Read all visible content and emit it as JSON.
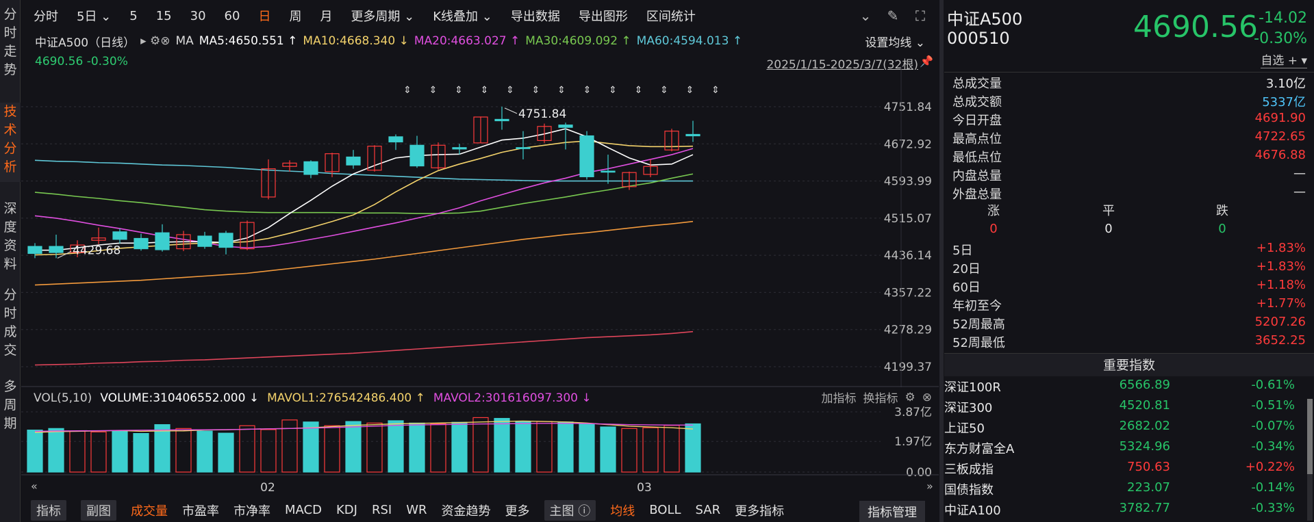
{
  "leftbar": [
    {
      "label": "分时走势",
      "active": false
    },
    {
      "label": "技术分析",
      "active": true
    },
    {
      "label": "深度资料",
      "active": false
    },
    {
      "label": "分时成交",
      "active": false
    },
    {
      "label": "多周期",
      "active": false
    }
  ],
  "topbar": {
    "items": [
      "分时",
      "5日 ⌄",
      "5",
      "15",
      "30",
      "60",
      "日",
      "周",
      "月",
      "更多周期 ⌄",
      "K线叠加 ⌄",
      "导出数据",
      "导出图形",
      "区间统计"
    ],
    "active_index": 6
  },
  "chart_header": {
    "name": "中证A500（日线）",
    "ma_label": "MA",
    "ma5": "MA5:4650.551 ↑",
    "ma10": "MA10:4668.340 ↓",
    "ma20": "MA20:4663.027 ↑",
    "ma30": "MA30:4609.092 ↑",
    "ma60": "MA60:4594.013 ↑",
    "set_ma": "设置均线 ⌄",
    "price_change": "4690.56 -0.30%",
    "range": "2025/1/15-2025/3/7(32根)",
    "annot_high": "4751.84",
    "annot_low": "4429.68"
  },
  "colors": {
    "ma5": "#ffffff",
    "ma10": "#f3d26b",
    "ma20": "#e04fe0",
    "ma30": "#78c850",
    "ma60": "#5fc8d8",
    "up": "#ff3b3b",
    "down": "#3ccfcf",
    "green": "#27c468"
  },
  "chart_data": {
    "type": "candlestick",
    "price_axis_ticks": [
      "4751.84",
      "4672.92",
      "4593.99",
      "4515.07",
      "4436.14",
      "4357.22",
      "4278.29",
      "4199.37"
    ],
    "ylim": [
      4199.37,
      4751.84
    ],
    "x_ticks": [
      "02",
      "03"
    ],
    "candles": [
      {
        "o": 4455,
        "c": 4440,
        "h": 4462,
        "l": 4430
      },
      {
        "o": 4455,
        "c": 4442,
        "h": 4480,
        "l": 4430
      },
      {
        "o": 4442,
        "c": 4458,
        "h": 4468,
        "l": 4432
      },
      {
        "o": 4468,
        "c": 4473,
        "h": 4495,
        "l": 4460
      },
      {
        "o": 4486,
        "c": 4470,
        "h": 4493,
        "l": 4461
      },
      {
        "o": 4472,
        "c": 4450,
        "h": 4482,
        "l": 4446
      },
      {
        "o": 4484,
        "c": 4448,
        "h": 4502,
        "l": 4444
      },
      {
        "o": 4450,
        "c": 4480,
        "h": 4488,
        "l": 4445
      },
      {
        "o": 4477,
        "c": 4455,
        "h": 4486,
        "l": 4450
      },
      {
        "o": 4483,
        "c": 4453,
        "h": 4488,
        "l": 4438
      },
      {
        "o": 4450,
        "c": 4506,
        "h": 4510,
        "l": 4447
      },
      {
        "o": 4560,
        "c": 4620,
        "h": 4640,
        "l": 4555
      },
      {
        "o": 4625,
        "c": 4632,
        "h": 4638,
        "l": 4614
      },
      {
        "o": 4635,
        "c": 4608,
        "h": 4638,
        "l": 4600
      },
      {
        "o": 4614,
        "c": 4652,
        "h": 4654,
        "l": 4602
      },
      {
        "o": 4645,
        "c": 4628,
        "h": 4660,
        "l": 4620
      },
      {
        "o": 4617,
        "c": 4668,
        "h": 4670,
        "l": 4614
      },
      {
        "o": 4688,
        "c": 4677,
        "h": 4693,
        "l": 4660
      },
      {
        "o": 4670,
        "c": 4626,
        "h": 4690,
        "l": 4622
      },
      {
        "o": 4622,
        "c": 4670,
        "h": 4676,
        "l": 4618
      },
      {
        "o": 4665,
        "c": 4662,
        "h": 4673,
        "l": 4650
      },
      {
        "o": 4675,
        "c": 4730,
        "h": 4731,
        "l": 4675
      },
      {
        "o": 4725,
        "c": 4722,
        "h": 4752,
        "l": 4703
      },
      {
        "o": 4665,
        "c": 4663,
        "h": 4700,
        "l": 4640
      },
      {
        "o": 4680,
        "c": 4710,
        "h": 4716,
        "l": 4675
      },
      {
        "o": 4713,
        "c": 4708,
        "h": 4718,
        "l": 4661
      },
      {
        "o": 4690,
        "c": 4603,
        "h": 4700,
        "l": 4597
      },
      {
        "o": 4615,
        "c": 4613,
        "h": 4650,
        "l": 4588
      },
      {
        "o": 4582,
        "c": 4612,
        "h": 4614,
        "l": 4575
      },
      {
        "o": 4608,
        "c": 4625,
        "h": 4640,
        "l": 4602
      },
      {
        "o": 4660,
        "c": 4700,
        "h": 4705,
        "l": 4657
      },
      {
        "o": 4693,
        "c": 4690,
        "h": 4722,
        "l": 4677
      }
    ],
    "ma5": [
      4447,
      4447,
      4452,
      4458,
      4462,
      4462,
      4464,
      4465,
      4465,
      4463,
      4473,
      4495,
      4525,
      4553,
      4583,
      4609,
      4627,
      4643,
      4648,
      4650,
      4651,
      4666,
      4681,
      4685,
      4694,
      4705,
      4688,
      4665,
      4643,
      4628,
      4630,
      4650
    ],
    "ma10": [
      4437,
      4438,
      4441,
      4446,
      4451,
      4454,
      4457,
      4460,
      4462,
      4463,
      4465,
      4472,
      4483,
      4495,
      4508,
      4522,
      4544,
      4571,
      4595,
      4616,
      4630,
      4642,
      4655,
      4664,
      4670,
      4676,
      4679,
      4674,
      4669,
      4667,
      4667,
      4668
    ],
    "ma20": [
      4520,
      4515,
      4508,
      4500,
      4493,
      4485,
      4477,
      4470,
      4463,
      4455,
      4452,
      4455,
      4462,
      4470,
      4478,
      4487,
      4496,
      4505,
      4515,
      4525,
      4537,
      4552,
      4565,
      4578,
      4590,
      4600,
      4612,
      4620,
      4630,
      4640,
      4650,
      4663
    ],
    "ma30": [
      4570,
      4566,
      4561,
      4557,
      4552,
      4548,
      4543,
      4538,
      4533,
      4530,
      4528,
      4527,
      4527,
      4527,
      4527,
      4526,
      4526,
      4526,
      4525,
      4525,
      4526,
      4530,
      4538,
      4546,
      4553,
      4560,
      4568,
      4575,
      4583,
      4590,
      4600,
      4609
    ],
    "ma60": [
      4638,
      4636,
      4635,
      4633,
      4632,
      4630,
      4628,
      4627,
      4625,
      4623,
      4620,
      4617,
      4615,
      4613,
      4610,
      4608,
      4606,
      4604,
      4602,
      4600,
      4598,
      4597,
      4596,
      4595,
      4594,
      4594,
      4594,
      4594,
      4594,
      4594,
      4594,
      4594
    ],
    "ma120": [
      4373,
      4375,
      4377,
      4379,
      4381,
      4383,
      4386,
      4389,
      4392,
      4395,
      4398,
      4403,
      4408,
      4413,
      4418,
      4423,
      4428,
      4434,
      4440,
      4446,
      4452,
      4458,
      4464,
      4470,
      4475,
      4480,
      4484,
      4489,
      4494,
      4499,
      4503,
      4508
    ],
    "ma250": [
      4203,
      4204,
      4205,
      4207,
      4208,
      4210,
      4211,
      4213,
      4214,
      4216,
      4218,
      4220,
      4222,
      4224,
      4226,
      4228,
      4231,
      4234,
      4237,
      4240,
      4243,
      4246,
      4249,
      4252,
      4255,
      4258,
      4261,
      4263,
      4265,
      4267,
      4270,
      4274
    ],
    "volume_axis_ticks": [
      "3.87亿",
      "1.97亿",
      "0.00"
    ],
    "volume_ylim": [
      0,
      3.87
    ],
    "volume": [
      2.7,
      2.8,
      2.63,
      2.58,
      2.65,
      2.48,
      3.05,
      2.8,
      2.63,
      2.5,
      2.98,
      2.73,
      3.35,
      3.22,
      2.98,
      3.25,
      3.15,
      3.3,
      3.15,
      3.1,
      3.2,
      3.5,
      3.45,
      3.25,
      3.25,
      3.22,
      3.08,
      2.9,
      2.8,
      2.85,
      3.0,
      3.1
    ],
    "mavol1": [
      2.55,
      2.6,
      2.62,
      2.64,
      2.67,
      2.62,
      2.64,
      2.65,
      2.7,
      2.72,
      2.75,
      2.78,
      2.8,
      2.85,
      2.92,
      3.0,
      3.05,
      3.1,
      3.13,
      3.15,
      3.18,
      3.22,
      3.25,
      3.28,
      3.25,
      3.22,
      3.15,
      3.05,
      2.95,
      2.9,
      2.85,
      2.77
    ],
    "mavol2": [
      2.62,
      2.64,
      2.65,
      2.66,
      2.68,
      2.69,
      2.7,
      2.72,
      2.72,
      2.73,
      2.75,
      2.78,
      2.8,
      2.83,
      2.86,
      2.9,
      2.95,
      3.0,
      3.03,
      3.05,
      3.07,
      3.09,
      3.1,
      3.12,
      3.13,
      3.13,
      3.12,
      3.08,
      3.05,
      3.03,
      3.02,
      3.02
    ]
  },
  "vol_header": {
    "label": "VOL(5,10)",
    "volume": "VOLUME:310406552.000 ↓",
    "mavol1": "MAVOL1:276542486.400 ↑",
    "mavol2": "MAVOL2:301616097.300 ↓",
    "add": "加指标",
    "swap": "换指标"
  },
  "bottombar": {
    "items": [
      "指标",
      "副图",
      "成交量",
      "市盈率",
      "市净率",
      "MACD",
      "KDJ",
      "RSI",
      "WR",
      "资金趋势",
      "更多",
      "主图 ⓘ",
      "均线",
      "BOLL",
      "SAR",
      "更多指标"
    ],
    "manage": "指标管理"
  },
  "quote": {
    "name": "中证A500",
    "code": "000510",
    "price": "4690.56",
    "change": "-14.02",
    "change_pct": "-0.30%",
    "watch": "自选 +"
  },
  "stats": [
    {
      "label": "总成交量",
      "value": "3.10亿",
      "color": "w"
    },
    {
      "label": "总成交额",
      "value": "5337亿",
      "color": "c"
    },
    {
      "label": "今日开盘",
      "value": "4691.90",
      "color": "g"
    },
    {
      "label": "最高点位",
      "value": "4722.65",
      "color": "r"
    },
    {
      "label": "最低点位",
      "value": "4676.88",
      "color": "g"
    },
    {
      "label": "内盘总量",
      "value": "—",
      "color": "w"
    },
    {
      "label": "外盘总量",
      "value": "—",
      "color": "w"
    }
  ],
  "updown": {
    "up_label": "涨",
    "flat_label": "平",
    "down_label": "跌",
    "up": "0",
    "flat": "0",
    "down": "0"
  },
  "periods": [
    {
      "label": "5日",
      "value": "+1.83%",
      "color": "r"
    },
    {
      "label": "20日",
      "value": "+1.83%",
      "color": "r"
    },
    {
      "label": "60日",
      "value": "+1.18%",
      "color": "r"
    },
    {
      "label": "年初至今",
      "value": "+1.77%",
      "color": "r"
    },
    {
      "label": "52周最高",
      "value": "5207.26",
      "color": "r"
    },
    {
      "label": "52周最低",
      "value": "3652.25",
      "color": "g"
    }
  ],
  "index_title": "重要指数",
  "indices": [
    {
      "name": "深证100R",
      "price": "6566.89",
      "chg": "-0.61%",
      "color": "g"
    },
    {
      "name": "深证300",
      "price": "4520.81",
      "chg": "-0.51%",
      "color": "g"
    },
    {
      "name": "上证50",
      "price": "2682.02",
      "chg": "-0.07%",
      "color": "g"
    },
    {
      "name": "东方财富全A",
      "price": "5324.96",
      "chg": "-0.34%",
      "color": "g"
    },
    {
      "name": "三板成指",
      "price": "750.63",
      "chg": "+0.22%",
      "color": "r"
    },
    {
      "name": "国债指数",
      "price": "223.07",
      "chg": "-0.14%",
      "color": "g"
    },
    {
      "name": "中证A100",
      "price": "3782.77",
      "chg": "-0.33%",
      "color": "g"
    }
  ]
}
